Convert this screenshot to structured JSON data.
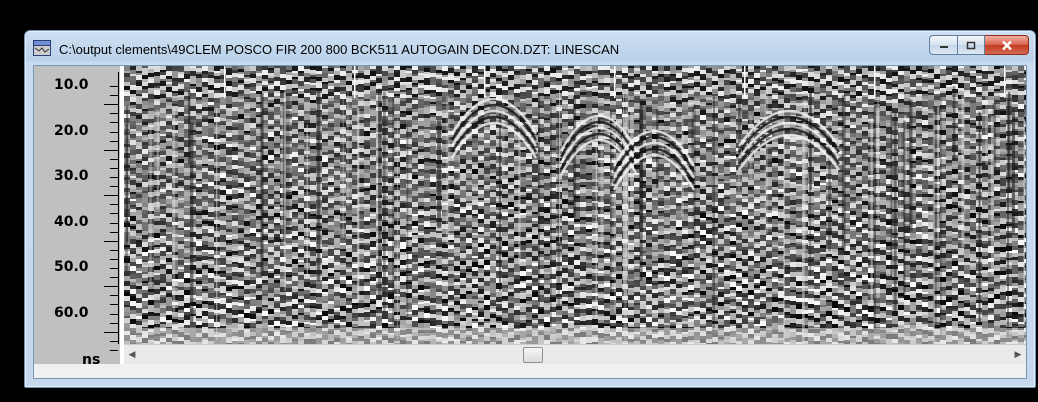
{
  "window": {
    "title": "C:\\output clements\\49CLEM POSCO FIR 200 800 BCK511 AUTOGAIN DECON.DZT:  LINESCAN",
    "icon": "linescan-app-icon",
    "controls": {
      "minimize_icon": "minimize-icon",
      "maximize_icon": "maximize-icon",
      "close_icon": "close-icon"
    }
  },
  "ruler": {
    "labels": [
      "10.0",
      "20.0",
      "30.0",
      "40.0",
      "50.0",
      "60.0"
    ],
    "unit": "ns"
  },
  "scrollbar": {
    "left_arrow": "◀",
    "right_arrow": "▶",
    "position_fraction": 0.45
  },
  "colors": {
    "frame": "#c5d8ec",
    "ruler": "#c0c0c0",
    "close": "#c23b22"
  }
}
